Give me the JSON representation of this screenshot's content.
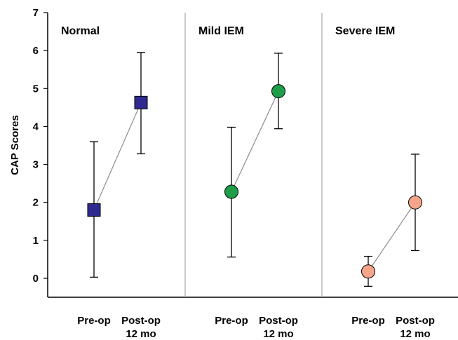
{
  "chart_data": {
    "type": "scatter",
    "ylabel": "CAP Scores",
    "ylim": [
      -0.5,
      7
    ],
    "yticks": [
      0,
      1,
      2,
      3,
      4,
      5,
      6,
      7
    ],
    "grid": false,
    "categories": [
      "Pre-op",
      "Post-op\n12 mo"
    ],
    "panels": [
      {
        "title": "Normal",
        "marker": "square",
        "color": "#2e2a8f",
        "points": [
          {
            "category": "Pre-op",
            "mean": 1.8,
            "upper": 3.6,
            "lower": 0.03
          },
          {
            "category": "Post-op\n12 mo",
            "mean": 4.63,
            "upper": 5.95,
            "lower": 3.28
          }
        ]
      },
      {
        "title": "Mild IEM",
        "marker": "circle",
        "color": "#1f9e4a",
        "points": [
          {
            "category": "Pre-op",
            "mean": 2.28,
            "upper": 3.98,
            "lower": 0.56
          },
          {
            "category": "Post-op\n12 mo",
            "mean": 4.93,
            "upper": 5.93,
            "lower": 3.94
          }
        ]
      },
      {
        "title": "Severe IEM",
        "marker": "circle",
        "color": "#f5a58a",
        "points": [
          {
            "category": "Pre-op",
            "mean": 0.18,
            "upper": 0.58,
            "lower": -0.21
          },
          {
            "category": "Post-op\n12 mo",
            "mean": 2.0,
            "upper": 3.27,
            "lower": 0.73
          }
        ]
      }
    ]
  }
}
